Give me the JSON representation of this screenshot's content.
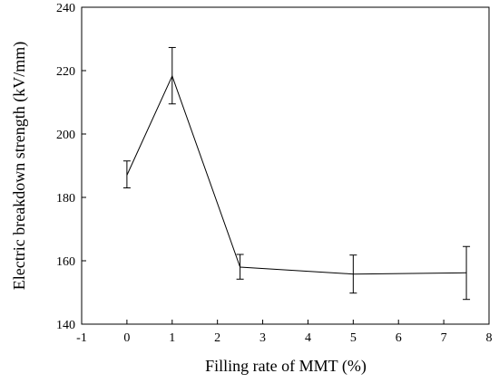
{
  "chart_data": {
    "type": "line",
    "title": "",
    "xlabel": "Filling rate of MMT (%)",
    "ylabel": "Electric breakdown strength (kV/mm)",
    "xlim": [
      -1,
      8
    ],
    "ylim": [
      140,
      240
    ],
    "x_ticks": [
      -1,
      0,
      1,
      2,
      3,
      4,
      5,
      6,
      7,
      8
    ],
    "y_ticks": [
      140,
      160,
      180,
      200,
      220,
      240
    ],
    "grid": false,
    "legend": "none",
    "series": [
      {
        "x": [
          0,
          1,
          2.5,
          5,
          7.5
        ],
        "y": [
          187,
          218.3,
          158,
          155.8,
          156.2
        ],
        "error_low": [
          4,
          8.8,
          3.8,
          6,
          8.4
        ],
        "error_high": [
          4.5,
          9,
          4,
          6,
          8.3
        ],
        "color": "#000000"
      }
    ]
  }
}
